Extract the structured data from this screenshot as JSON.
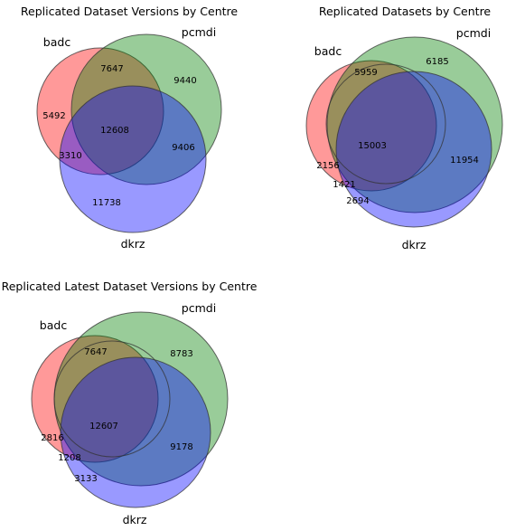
{
  "panels": [
    {
      "title": "Replicated Dataset Versions by Centre",
      "sets": {
        "badc": {
          "label": "badc",
          "color": "#ff0000"
        },
        "pcmdi": {
          "label": "pcmdi",
          "color": "#008000"
        },
        "dkrz": {
          "label": "dkrz",
          "color": "#0000ff"
        }
      },
      "regions": {
        "badc_only": "5492",
        "pcmdi_only": "9440",
        "dkrz_only": "11738",
        "badc_pcmdi": "7647",
        "badc_dkrz": "3310",
        "pcmdi_dkrz": "9406",
        "all_three": "12608"
      }
    },
    {
      "title": "Replicated Datasets by Centre",
      "sets": {
        "badc": {
          "label": "badc",
          "color": "#ff0000"
        },
        "pcmdi": {
          "label": "pcmdi",
          "color": "#008000"
        },
        "dkrz": {
          "label": "dkrz",
          "color": "#0000ff"
        }
      },
      "regions": {
        "badc_only": "2156",
        "pcmdi_only": "6185",
        "dkrz_only": "2694",
        "badc_pcmdi": "5959",
        "badc_dkrz": "1421",
        "pcmdi_dkrz": "11954",
        "all_three": "15003"
      }
    },
    {
      "title": "Replicated Latest Dataset Versions by Centre",
      "sets": {
        "badc": {
          "label": "badc",
          "color": "#ff0000"
        },
        "pcmdi": {
          "label": "pcmdi",
          "color": "#008000"
        },
        "dkrz": {
          "label": "dkrz",
          "color": "#0000ff"
        }
      },
      "regions": {
        "badc_only": "2816",
        "pcmdi_only": "8783",
        "dkrz_only": "3133",
        "badc_pcmdi": "7647",
        "badc_dkrz": "1208",
        "pcmdi_dkrz": "9178",
        "all_three": "12607"
      }
    }
  ]
}
